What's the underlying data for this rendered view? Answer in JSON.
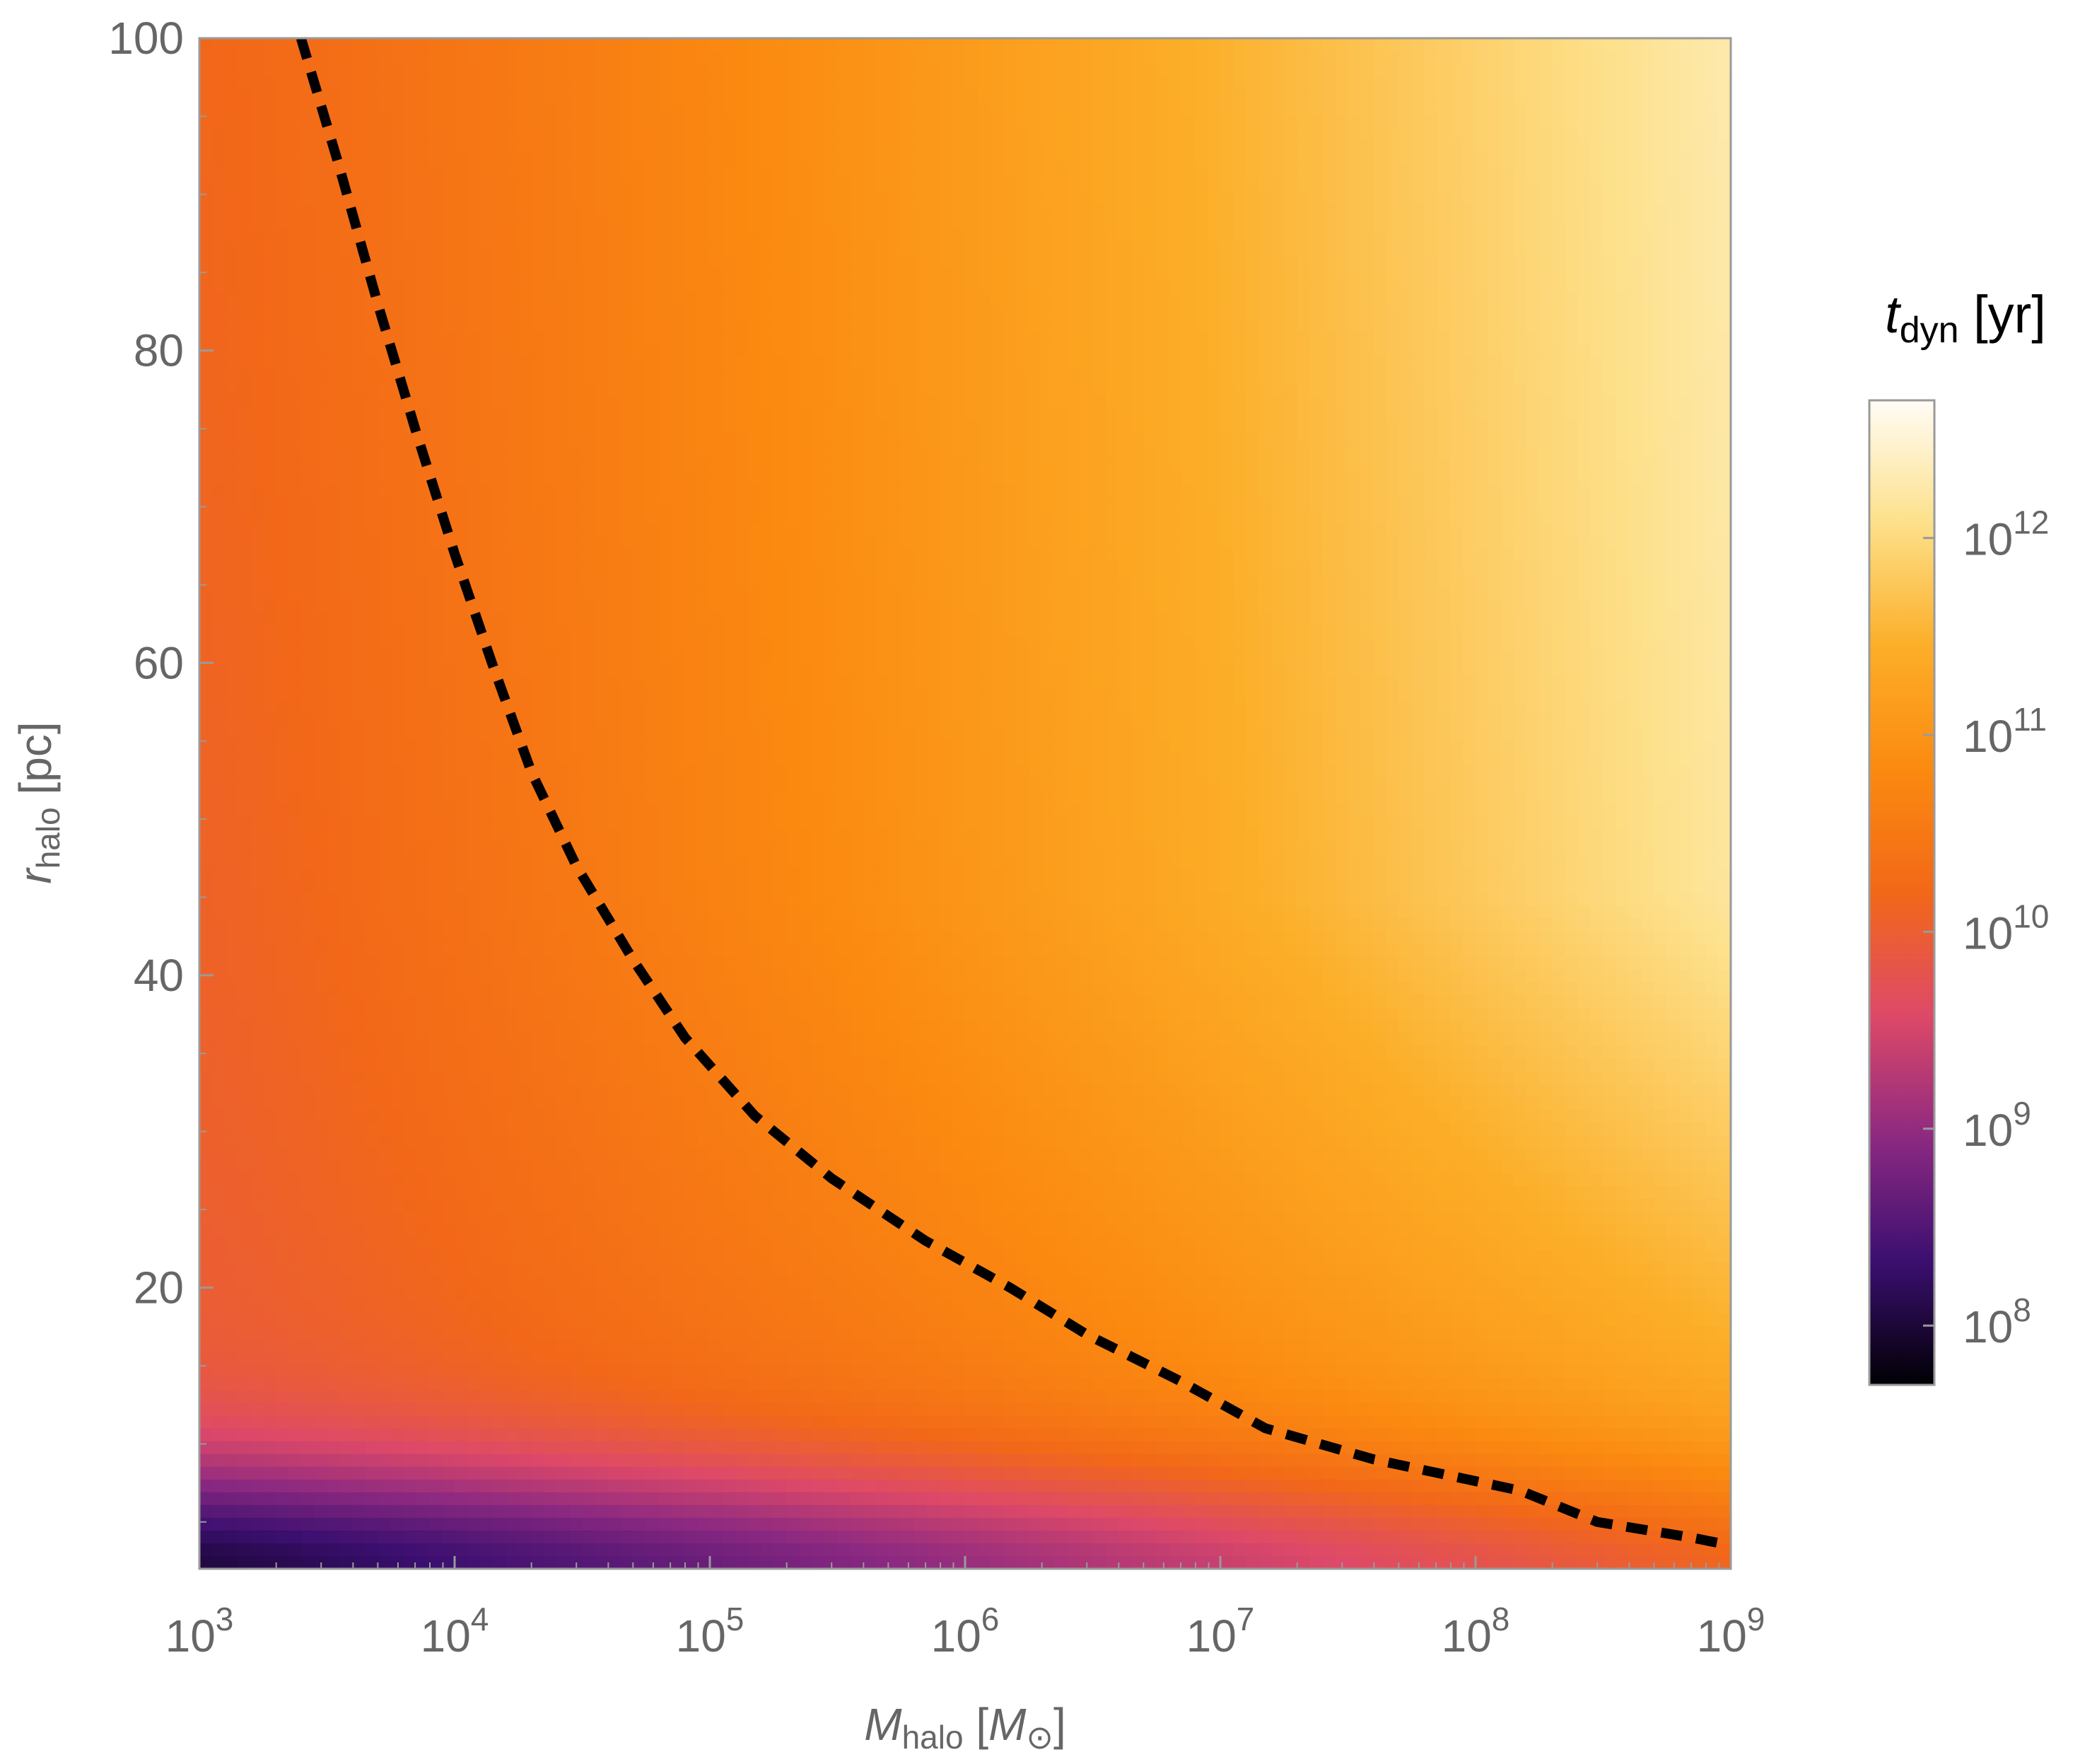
{
  "chart_data": {
    "type": "heatmap",
    "title": "",
    "x_axis": {
      "label_main": "M",
      "label_sub": "halo",
      "label_unit_open": " [",
      "label_unit_main": "M",
      "label_unit_sub": "⊙",
      "label_unit_close": "]",
      "scale": "log",
      "range": [
        1000,
        1000000000
      ],
      "ticks": [
        {
          "value": 1000,
          "base": "10",
          "exp": "3"
        },
        {
          "value": 10000,
          "base": "10",
          "exp": "4"
        },
        {
          "value": 100000,
          "base": "10",
          "exp": "5"
        },
        {
          "value": 1000000,
          "base": "10",
          "exp": "6"
        },
        {
          "value": 10000000,
          "base": "10",
          "exp": "7"
        },
        {
          "value": 100000000,
          "base": "10",
          "exp": "8"
        },
        {
          "value": 1000000000,
          "base": "10",
          "exp": "9"
        }
      ]
    },
    "y_axis": {
      "label_main": "r",
      "label_sub": "halo",
      "label_unit": " [pc]",
      "scale": "linear",
      "range": [
        2,
        100
      ],
      "ticks": [
        20,
        40,
        60,
        80,
        100
      ],
      "tick_labels": [
        "20",
        "40",
        "60",
        "80",
        "100"
      ],
      "minor_ticks": [
        5,
        10,
        15,
        25,
        30,
        35,
        45,
        50,
        55,
        65,
        70,
        75,
        85,
        90,
        95
      ]
    },
    "colorbar": {
      "label_main": "t",
      "label_sub": "dyn",
      "label_unit": " [yr]",
      "scale": "log",
      "range": [
        50000000,
        5000000000000
      ],
      "ticks": [
        {
          "value": 100000000,
          "base": "10",
          "exp": "8"
        },
        {
          "value": 1000000000,
          "base": "10",
          "exp": "9"
        },
        {
          "value": 10000000000,
          "base": "10",
          "exp": "10"
        },
        {
          "value": 100000000000,
          "base": "10",
          "exp": "11"
        },
        {
          "value": 1000000000000,
          "base": "10",
          "exp": "12"
        }
      ],
      "colormap": [
        "#000004",
        "#3b0f70",
        "#8c2981",
        "#de4968",
        "#f26818",
        "#fb8a10",
        "#fcae28",
        "#fde08a",
        "#fffcf5"
      ]
    },
    "contour": {
      "style": "dashed",
      "color": "#000000",
      "points": [
        [
          2500,
          100
        ],
        [
          3500,
          92
        ],
        [
          5000,
          83
        ],
        [
          7000,
          75
        ],
        [
          10000,
          67
        ],
        [
          14000,
          60
        ],
        [
          20000,
          53
        ],
        [
          30000,
          47
        ],
        [
          50000,
          41
        ],
        [
          80000,
          36
        ],
        [
          150000,
          31
        ],
        [
          300000,
          27
        ],
        [
          700000,
          23
        ],
        [
          1500000,
          20
        ],
        [
          3000000,
          17
        ],
        [
          7000000,
          14
        ],
        [
          15000000,
          11
        ],
        [
          40000000,
          9
        ],
        [
          150000000,
          7
        ],
        [
          300000000,
          5
        ],
        [
          700000000,
          4
        ],
        [
          1000000000,
          3.5
        ]
      ]
    }
  }
}
